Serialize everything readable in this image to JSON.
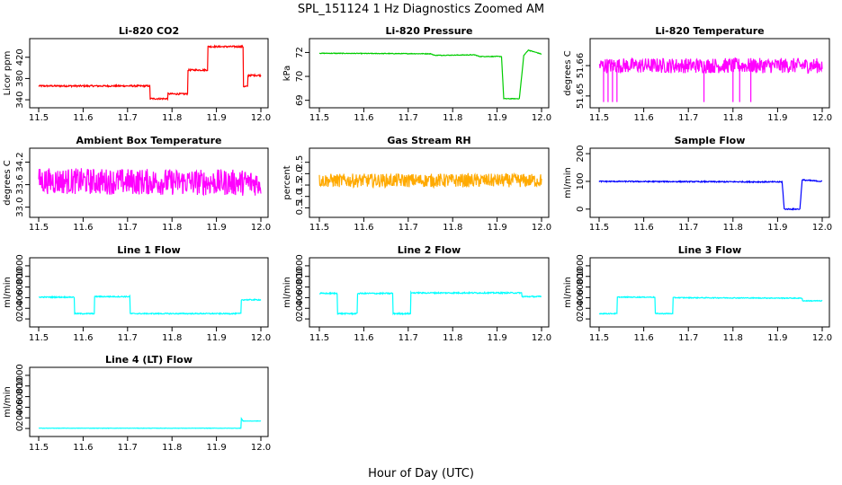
{
  "figure": {
    "title": "SPL_151124  1 Hz Diagnostics Zoomed AM",
    "xlabel": "Hour of Day (UTC)"
  },
  "chart_data": [
    {
      "type": "line",
      "title": "Li-820 CO2",
      "xlabel": "",
      "ylabel": "Licor ppm",
      "color": "#ff0000",
      "xlim": [
        11.5,
        12.0
      ],
      "xticks": [
        11.5,
        11.6,
        11.7,
        11.8,
        11.9,
        12.0
      ],
      "ylim": [
        330,
        450
      ],
      "yticks": [
        340,
        380,
        420
      ],
      "series": [
        {
          "x": [
            11.5,
            11.75,
            11.75,
            11.79,
            11.79,
            11.835,
            11.835,
            11.88,
            11.88,
            11.96,
            11.96,
            11.97,
            11.97,
            12.0
          ],
          "y": [
            366,
            366,
            342,
            342,
            351,
            351,
            396,
            396,
            440,
            440,
            365,
            365,
            386,
            386
          ],
          "noise": 1.5
        }
      ]
    },
    {
      "type": "line",
      "title": "Li-820 Pressure",
      "xlabel": "",
      "ylabel": "kPa",
      "color": "#00cc00",
      "xlim": [
        11.5,
        12.0
      ],
      "xticks": [
        11.5,
        11.6,
        11.7,
        11.8,
        11.9,
        12.0
      ],
      "ylim": [
        68.2,
        72.2
      ],
      "yticks": [
        68.5,
        70.0,
        71.5
      ],
      "series": [
        {
          "x": [
            11.5,
            11.75,
            11.76,
            11.85,
            11.86,
            11.91,
            11.915,
            11.95,
            11.96,
            11.97,
            12.0
          ],
          "y": [
            71.45,
            71.42,
            71.32,
            71.35,
            71.25,
            71.25,
            68.6,
            68.6,
            71.3,
            71.65,
            71.4
          ],
          "noise": 0.02
        }
      ]
    },
    {
      "type": "line",
      "title": "Li-820 Temperature",
      "xlabel": "",
      "ylabel": "degrees C",
      "color": "#ff00ff",
      "xlim": [
        11.5,
        12.0
      ],
      "xticks": [
        11.5,
        11.6,
        11.7,
        11.8,
        11.9,
        12.0
      ],
      "ylim": [
        51.647,
        51.668
      ],
      "yticks": [
        51.65,
        51.66
      ],
      "series": [
        {
          "x": [
            11.5,
            12.0
          ],
          "y": [
            51.66,
            51.66
          ],
          "noise": 0.0025,
          "spikes_down": [
            11.51,
            11.52,
            11.53,
            11.54,
            11.735,
            11.8,
            11.815,
            11.84
          ],
          "spike_value": 51.648
        }
      ]
    },
    {
      "type": "line",
      "title": "Ambient Box Temperature",
      "xlabel": "",
      "ylabel": "degrees C",
      "color": "#ff00ff",
      "xlim": [
        11.5,
        12.0
      ],
      "xticks": [
        11.5,
        11.6,
        11.7,
        11.8,
        11.9,
        12.0
      ],
      "ylim": [
        32.8,
        34.5
      ],
      "yticks": [
        33.0,
        33.6,
        34.2
      ],
      "series": [
        {
          "x": [
            11.5,
            12.0
          ],
          "y": [
            33.7,
            33.65
          ],
          "noise": 0.35
        }
      ]
    },
    {
      "type": "line",
      "title": "Gas Stream RH",
      "xlabel": "",
      "ylabel": "percent",
      "color": "#ffaa00",
      "xlim": [
        11.5,
        12.0
      ],
      "xticks": [
        11.5,
        11.6,
        11.7,
        11.8,
        11.9,
        12.0
      ],
      "ylim": [
        0.2,
        3.0
      ],
      "yticks": [
        0.5,
        1.0,
        1.5,
        2.0,
        2.5
      ],
      "series": [
        {
          "x": [
            11.5,
            12.0
          ],
          "y": [
            1.7,
            1.7
          ],
          "noise": 0.3
        }
      ]
    },
    {
      "type": "line",
      "title": "Sample Flow",
      "xlabel": "",
      "ylabel": "ml/min",
      "color": "#0000ff",
      "xlim": [
        11.5,
        12.0
      ],
      "xticks": [
        11.5,
        11.6,
        11.7,
        11.8,
        11.9,
        12.0
      ],
      "ylim": [
        -20,
        210
      ],
      "yticks": [
        0,
        100,
        200
      ],
      "series": [
        {
          "x": [
            11.5,
            11.91,
            11.915,
            11.95,
            11.955,
            12.0
          ],
          "y": [
            100,
            98,
            0,
            0,
            105,
            100
          ],
          "noise": 2
        }
      ]
    },
    {
      "type": "line",
      "title": "Line 1 Flow",
      "xlabel": "",
      "ylabel": "ml/min",
      "color": "#00ffff",
      "xlim": [
        11.5,
        12.0
      ],
      "xticks": [
        11.5,
        11.6,
        11.7,
        11.8,
        11.9,
        12.0
      ],
      "ylim": [
        -100,
        1100
      ],
      "yticks": [
        0,
        200,
        400,
        600,
        800,
        1000
      ],
      "series": [
        {
          "x": [
            11.5,
            11.58,
            11.58,
            11.625,
            11.625,
            11.705,
            11.705,
            11.955,
            11.955,
            12.0
          ],
          "y": [
            410,
            410,
            100,
            100,
            420,
            420,
            100,
            100,
            360,
            360
          ],
          "noise": 10
        }
      ]
    },
    {
      "type": "line",
      "title": "Line 2 Flow",
      "xlabel": "",
      "ylabel": "ml/min",
      "color": "#00ffff",
      "xlim": [
        11.5,
        12.0
      ],
      "xticks": [
        11.5,
        11.6,
        11.7,
        11.8,
        11.9,
        12.0
      ],
      "ylim": [
        -100,
        1100
      ],
      "yticks": [
        0,
        200,
        400,
        600,
        800,
        1000
      ],
      "series": [
        {
          "x": [
            11.5,
            11.54,
            11.54,
            11.585,
            11.585,
            11.665,
            11.665,
            11.705,
            11.705,
            11.955,
            11.955,
            12.0
          ],
          "y": [
            480,
            480,
            100,
            100,
            480,
            480,
            100,
            100,
            490,
            490,
            420,
            420
          ],
          "noise": 12
        }
      ]
    },
    {
      "type": "line",
      "title": "Line 3 Flow",
      "xlabel": "",
      "ylabel": "ml/min",
      "color": "#00ffff",
      "xlim": [
        11.5,
        12.0
      ],
      "xticks": [
        11.5,
        11.6,
        11.7,
        11.8,
        11.9,
        12.0
      ],
      "ylim": [
        -100,
        1100
      ],
      "yticks": [
        0,
        200,
        400,
        600,
        800,
        1000
      ],
      "series": [
        {
          "x": [
            11.5,
            11.54,
            11.54,
            11.625,
            11.625,
            11.665,
            11.665,
            11.955,
            11.955,
            12.0
          ],
          "y": [
            100,
            100,
            410,
            410,
            100,
            100,
            400,
            390,
            340,
            340
          ],
          "noise": 8
        }
      ]
    },
    {
      "type": "line",
      "title": "Line 4 (LT) Flow",
      "xlabel": "",
      "ylabel": "ml/min",
      "color": "#00ffff",
      "xlim": [
        11.5,
        12.0
      ],
      "xticks": [
        11.5,
        11.6,
        11.7,
        11.8,
        11.9,
        12.0
      ],
      "ylim": [
        -100,
        1100
      ],
      "yticks": [
        0,
        200,
        400,
        600,
        800,
        1000
      ],
      "series": [
        {
          "x": [
            11.5,
            11.955,
            11.955,
            11.96,
            11.96,
            12.0
          ],
          "y": [
            5,
            5,
            200,
            140,
            140,
            140
          ],
          "noise": 3
        }
      ]
    }
  ]
}
